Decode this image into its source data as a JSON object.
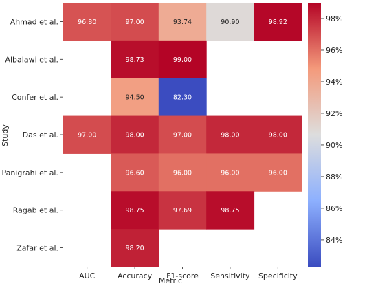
{
  "chart_data": {
    "type": "heatmap",
    "xlabel": "Metric",
    "ylabel": "Study",
    "columns": [
      "AUC",
      "Accuracy",
      "F1-score",
      "Sensitivity",
      "Specificity"
    ],
    "rows": [
      "Ahmad et al.",
      "Albalawi et al.",
      "Confer et al.",
      "Das et al.",
      "Panigrahi et al.",
      "Ragab et al.",
      "Zafar et al."
    ],
    "values": [
      [
        96.8,
        97.0,
        93.74,
        90.9,
        98.92
      ],
      [
        null,
        98.73,
        99.0,
        null,
        null
      ],
      [
        null,
        94.5,
        82.3,
        null,
        null
      ],
      [
        97.0,
        98.0,
        97.0,
        98.0,
        98.0
      ],
      [
        null,
        96.6,
        96.0,
        96.0,
        96.0
      ],
      [
        null,
        98.75,
        97.69,
        98.75,
        null
      ],
      [
        null,
        98.2,
        null,
        null,
        null
      ]
    ],
    "value_format": "0.00",
    "colormap": "coolwarm",
    "vmin": 82.3,
    "vmax": 99.0,
    "colorbar_ticks": [
      84,
      86,
      88,
      90,
      92,
      94,
      96,
      98
    ],
    "colorbar_tick_labels": [
      "84%",
      "86%",
      "88%",
      "90%",
      "92%",
      "94%",
      "96%",
      "98%"
    ]
  }
}
